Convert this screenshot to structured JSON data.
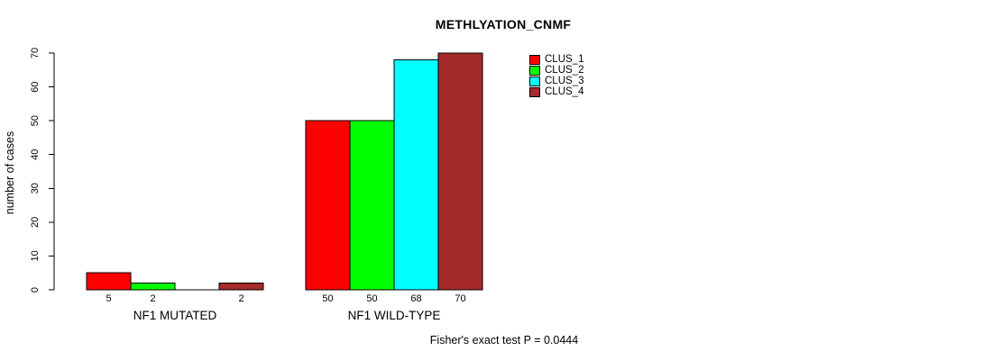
{
  "title": "METHLYATION_CNMF",
  "chart_data": {
    "type": "bar",
    "title": "METHLYATION_CNMF",
    "ylabel": "number of cases",
    "xlabel": "",
    "ylim": [
      0,
      70
    ],
    "yticks": [
      0,
      10,
      20,
      30,
      40,
      50,
      60,
      70
    ],
    "grid": false,
    "legend_position": "top-right",
    "bar_border_color": "#000000",
    "hide_zero_value_labels": true,
    "categories": [
      "NF1 MUTATED",
      "NF1 WILD-TYPE"
    ],
    "series": [
      {
        "name": "CLUS_1",
        "color": "#ff0000",
        "values": [
          5,
          50
        ]
      },
      {
        "name": "CLUS_2",
        "color": "#00ff00",
        "values": [
          2,
          50
        ]
      },
      {
        "name": "CLUS_3",
        "color": "#00ffff",
        "values": [
          0,
          68
        ]
      },
      {
        "name": "CLUS_4",
        "color": "#a52a2a",
        "values": [
          2,
          70
        ]
      }
    ],
    "annotation": "Fisher's exact test P = 0.0444"
  }
}
